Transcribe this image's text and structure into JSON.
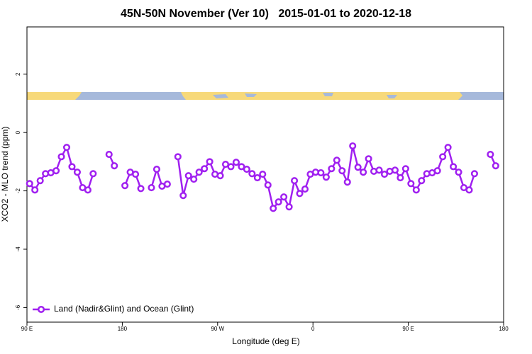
{
  "chart_data": {
    "type": "line",
    "title": "45N-50N November (Ver 10)   2015-01-01 to 2020-12-18",
    "xlabel": "Longitude (deg E)",
    "ylabel": "XCO2 - MLO trend (ppm)",
    "xlim": [
      90,
      540
    ],
    "ylim": [
      -6.5,
      3.62
    ],
    "xticks": [
      {
        "value": 90,
        "label": "90 E"
      },
      180,
      {
        "value": 270,
        "label": "90 W"
      },
      {
        "value": 360,
        "label": "0"
      },
      {
        "value": 450,
        "label": "90 E"
      },
      {
        "value": 540,
        "label": "180"
      }
    ],
    "yticks": [
      -6,
      -4,
      -2,
      0,
      2
    ],
    "grid": false,
    "legend": "lower left",
    "x": [
      92.5,
      97.5,
      102.5,
      107.5,
      112.5,
      117.5,
      122.5,
      127.5,
      132.5,
      137.5,
      142.5,
      147.5,
      152.5,
      157.5,
      162.5,
      167.5,
      172.5,
      177.5,
      182.5,
      187.5,
      192.5,
      197.5,
      202.5,
      207.5,
      212.5,
      217.5,
      222.5,
      227.5,
      232.5,
      237.5,
      242.5,
      247.5,
      252.5,
      257.5,
      262.5,
      267.5,
      272.5,
      277.5,
      282.5,
      287.5,
      292.5,
      297.5,
      302.5,
      307.5,
      312.5,
      317.5,
      322.5,
      327.5,
      332.5,
      337.5,
      342.5,
      347.5,
      352.5,
      357.5,
      362.5,
      367.5,
      372.5,
      377.5,
      382.5,
      387.5,
      392.5,
      397.5,
      402.5,
      407.5,
      412.5,
      417.5,
      422.5,
      427.5,
      432.5,
      437.5,
      442.5,
      447.5,
      452.5,
      457.5,
      462.5,
      467.5,
      472.5,
      477.5,
      482.5,
      487.5,
      492.5,
      497.5,
      502.5,
      507.5,
      512.5,
      517.5,
      522.5,
      527.5,
      532.5
    ],
    "series": [
      {
        "name": "Land (Nadir&Glint) and Ocean (Glint)",
        "color": "#a020f0",
        "values": [
          -1.75,
          -1.97,
          -1.65,
          -1.41,
          -1.38,
          -1.31,
          -0.83,
          -0.51,
          -1.17,
          -1.36,
          -1.89,
          -1.97,
          -1.41,
          null,
          null,
          -0.75,
          -1.14,
          null,
          -1.82,
          -1.36,
          -1.43,
          -1.92,
          null,
          -1.89,
          -1.26,
          -1.84,
          -1.77,
          null,
          -0.83,
          -2.16,
          -1.48,
          -1.6,
          -1.36,
          -1.24,
          -1.0,
          -1.43,
          -1.48,
          -1.09,
          -1.17,
          -1.02,
          -1.17,
          -1.26,
          -1.41,
          -1.55,
          -1.43,
          -1.8,
          -2.6,
          -2.38,
          -2.21,
          -2.55,
          -1.65,
          -2.09,
          -1.94,
          -1.43,
          -1.36,
          -1.38,
          -1.53,
          -1.24,
          -0.95,
          -1.31,
          -1.7,
          -0.46,
          -1.19,
          -1.36,
          -0.9,
          -1.33,
          -1.29,
          -1.43,
          -1.33,
          -1.29,
          -1.55,
          -1.24,
          -1.75,
          -1.97,
          -1.65,
          -1.41,
          -1.38,
          -1.31,
          -0.83,
          -0.51,
          -1.17,
          -1.36,
          -1.89,
          -1.97,
          -1.41,
          null,
          null,
          -0.75,
          -1.14
        ]
      }
    ]
  }
}
